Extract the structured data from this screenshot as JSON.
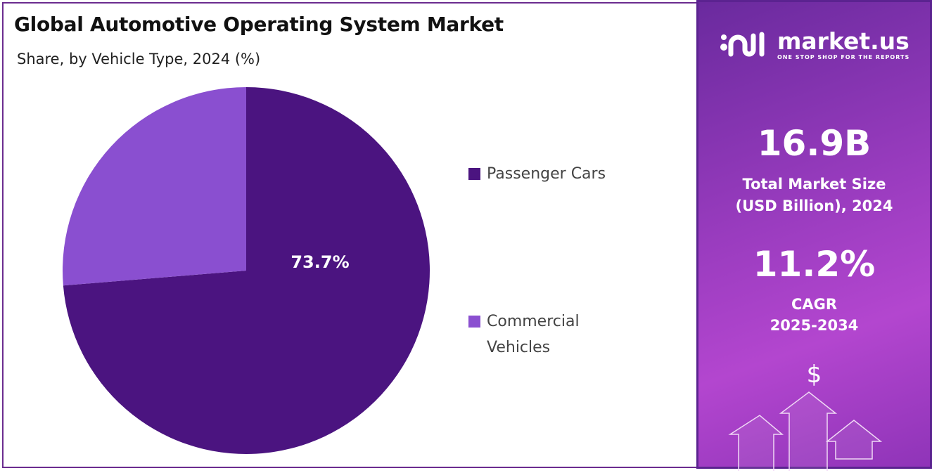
{
  "chart_data": {
    "type": "pie",
    "title": "Global Automotive Operating System Market",
    "subtitle": "Share, by Vehicle Type, 2024 (%)",
    "categories": [
      "Passenger Cars",
      "Commercial Vehicles"
    ],
    "values": [
      73.7,
      26.3
    ],
    "data_labels": [
      "73.7%",
      ""
    ],
    "colors": [
      "#4b1480",
      "#8a4fd0"
    ],
    "legend_position": "right"
  },
  "legend": [
    {
      "label": "Passenger Cars"
    },
    {
      "label": "Commercial Vehicles",
      "line1": "Commercial",
      "line2": "Vehicles"
    }
  ],
  "panel": {
    "brand": "market.us",
    "tagline": "ONE STOP SHOP FOR THE REPORTS",
    "market_size": "16.9B",
    "market_size_label1": "Total Market Size",
    "market_size_label2": "(USD Billion), 2024",
    "cagr": "11.2%",
    "cagr_label1": "CAGR",
    "cagr_label2": "2025-2034",
    "currency_symbol": "$"
  }
}
